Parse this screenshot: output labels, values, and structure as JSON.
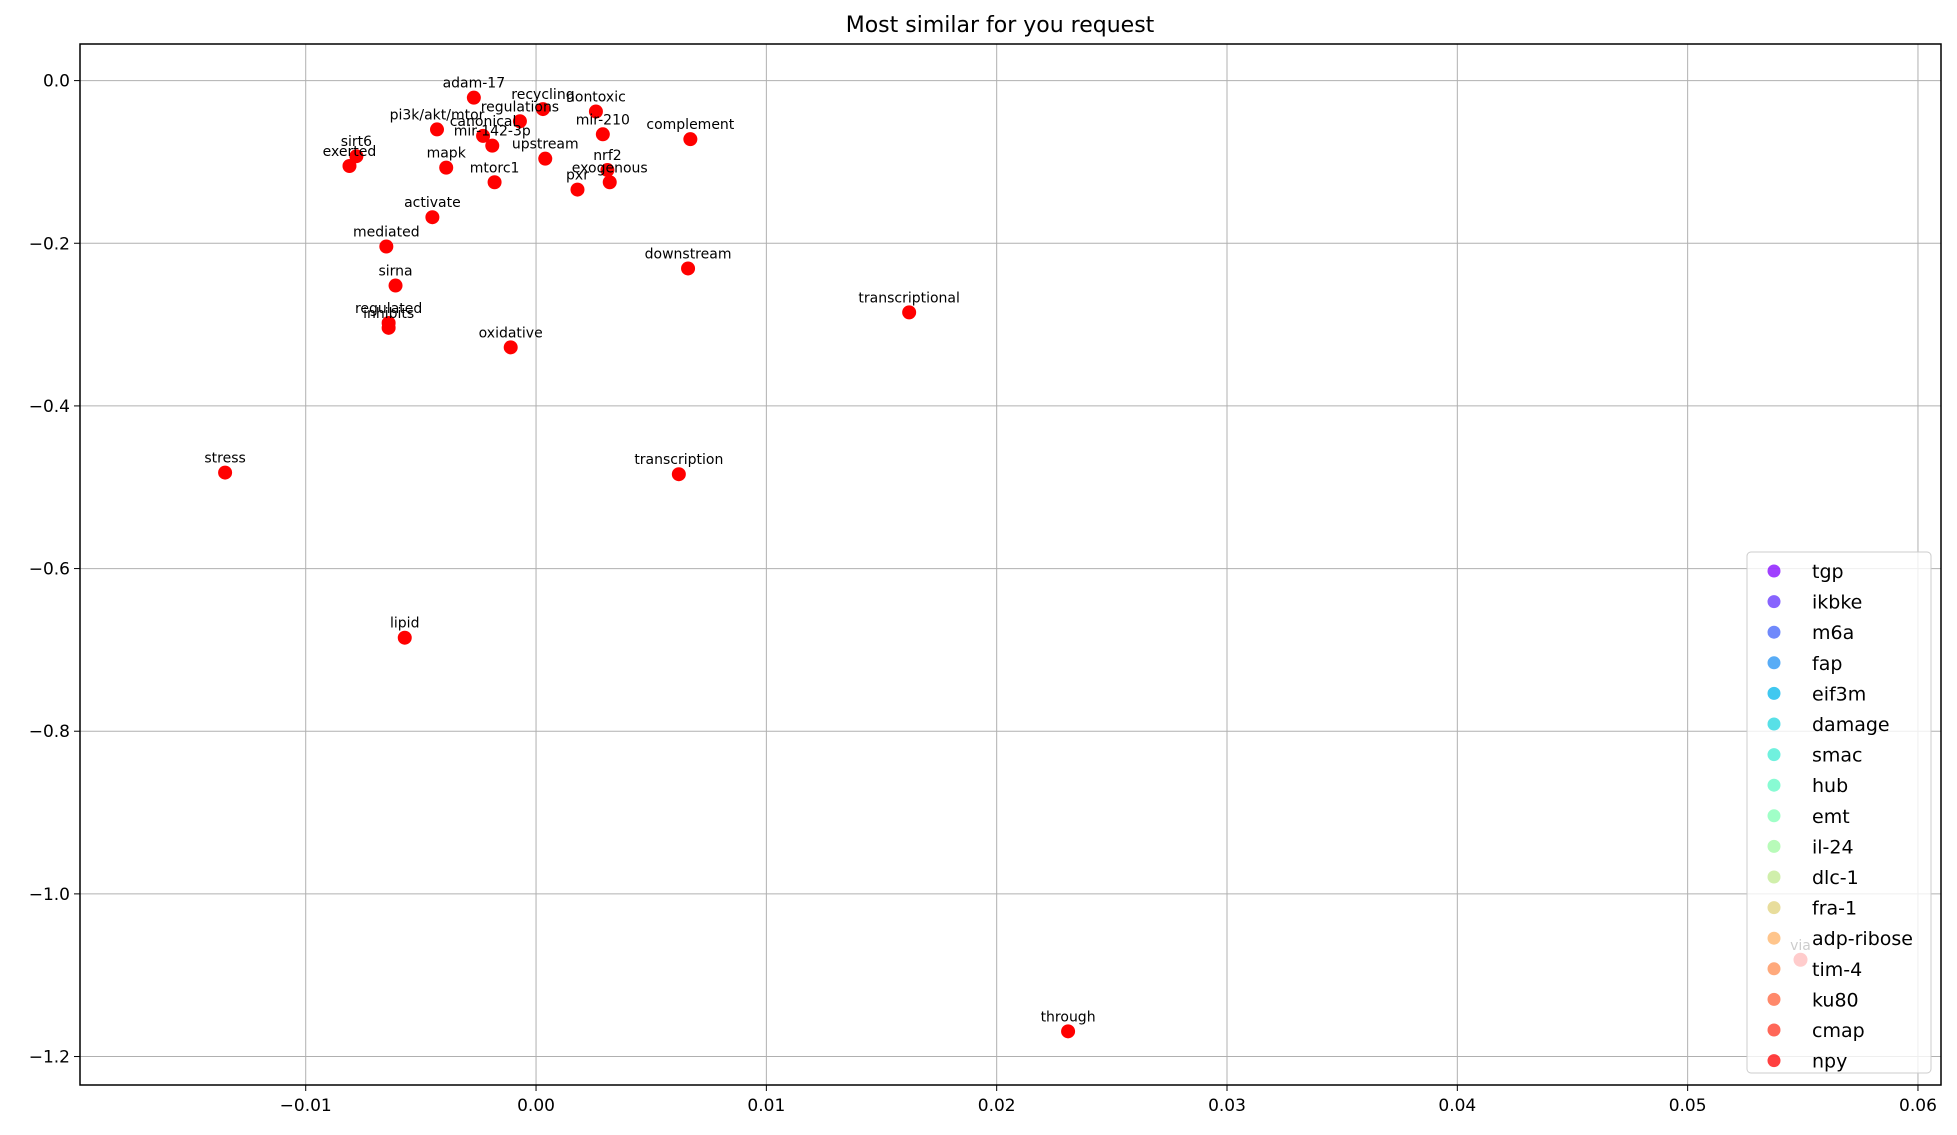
{
  "chart_data": {
    "type": "scatter",
    "title": "Most similar for you request",
    "xlabel": "",
    "ylabel": "",
    "xlim": [
      -0.0198,
      0.061
    ],
    "ylim": [
      -1.235,
      0.045
    ],
    "xticks": [
      -0.01,
      0.0,
      0.01,
      0.02,
      0.03,
      0.04,
      0.05,
      0.06
    ],
    "xtick_labels": [
      "−0.01",
      "0.00",
      "0.01",
      "0.02",
      "0.03",
      "0.04",
      "0.05",
      "0.06"
    ],
    "yticks": [
      0.0,
      -0.2,
      -0.4,
      -0.6,
      -0.8,
      -1.0,
      -1.2
    ],
    "ytick_labels": [
      "0.0",
      "−0.2",
      "−0.4",
      "−0.6",
      "−0.8",
      "−1.0",
      "−1.2"
    ],
    "grid": true,
    "legend_position": "lower-right",
    "point_color": "#ff0000",
    "points": [
      {
        "label": "adam-17",
        "x": -0.0027,
        "y": -0.021
      },
      {
        "label": "recycling",
        "x": 0.0003,
        "y": -0.035
      },
      {
        "label": "nontoxic",
        "x": 0.0026,
        "y": -0.038
      },
      {
        "label": "regulations",
        "x": -0.0007,
        "y": -0.05
      },
      {
        "label": "pi3k/akt/mtor",
        "x": -0.0043,
        "y": -0.06
      },
      {
        "label": "canonical",
        "x": -0.0023,
        "y": -0.068
      },
      {
        "label": "mir-142-3p",
        "x": -0.0019,
        "y": -0.08
      },
      {
        "label": "mir-210",
        "x": 0.0029,
        "y": -0.066
      },
      {
        "label": "complement",
        "x": 0.0067,
        "y": -0.072
      },
      {
        "label": "upstream",
        "x": 0.0004,
        "y": -0.096
      },
      {
        "label": "sirt6",
        "x": -0.0078,
        "y": -0.093
      },
      {
        "label": "exerted",
        "x": -0.0081,
        "y": -0.105
      },
      {
        "label": "mapk",
        "x": -0.0039,
        "y": -0.107
      },
      {
        "label": "nrf2",
        "x": 0.0031,
        "y": -0.11
      },
      {
        "label": "mtorc1",
        "x": -0.0018,
        "y": -0.125
      },
      {
        "label": "exogenous",
        "x": 0.0032,
        "y": -0.125
      },
      {
        "label": "pxr",
        "x": 0.0018,
        "y": -0.134
      },
      {
        "label": "activate",
        "x": -0.0045,
        "y": -0.168
      },
      {
        "label": "mediated",
        "x": -0.0065,
        "y": -0.204
      },
      {
        "label": "downstream",
        "x": 0.0066,
        "y": -0.231
      },
      {
        "label": "sirna",
        "x": -0.0061,
        "y": -0.252
      },
      {
        "label": "transcriptional",
        "x": 0.0162,
        "y": -0.285
      },
      {
        "label": "regulated",
        "x": -0.0064,
        "y": -0.298
      },
      {
        "label": "inhibits",
        "x": -0.0064,
        "y": -0.304
      },
      {
        "label": "oxidative",
        "x": -0.0011,
        "y": -0.328
      },
      {
        "label": "stress",
        "x": -0.0135,
        "y": -0.482
      },
      {
        "label": "transcription",
        "x": 0.0062,
        "y": -0.484
      },
      {
        "label": "lipid",
        "x": -0.0057,
        "y": -0.685
      },
      {
        "label": "through",
        "x": 0.0231,
        "y": -1.169
      }
    ],
    "series": [
      {
        "name": "tgp",
        "color": "#8000ff"
      },
      {
        "name": "ikbke",
        "color": "#6030fe"
      },
      {
        "name": "m6a",
        "color": "#4062fa"
      },
      {
        "name": "fap",
        "color": "#2090f3"
      },
      {
        "name": "eif3m",
        "color": "#00b5eb"
      },
      {
        "name": "damage",
        "color": "#20d5df"
      },
      {
        "name": "smac",
        "color": "#40ecd3"
      },
      {
        "name": "hub",
        "color": "#60fac4"
      },
      {
        "name": "emt",
        "color": "#80ffb4"
      },
      {
        "name": "il-24",
        "color": "#a0f9a2"
      },
      {
        "name": "dlc-1",
        "color": "#c0ea8f"
      },
      {
        "name": "fra-1",
        "color": "#e0d17b"
      },
      {
        "name": "adp-ribose",
        "color": "#ffb166"
      },
      {
        "name": "tim-4",
        "color": "#ff8c50"
      },
      {
        "name": "ku80",
        "color": "#ff6239"
      },
      {
        "name": "cmap",
        "color": "#ff3420"
      },
      {
        "name": "npy",
        "color": "#ff0000"
      }
    ],
    "hidden_point": {
      "label": "via",
      "x": 0.0549,
      "y": -1.081
    }
  }
}
